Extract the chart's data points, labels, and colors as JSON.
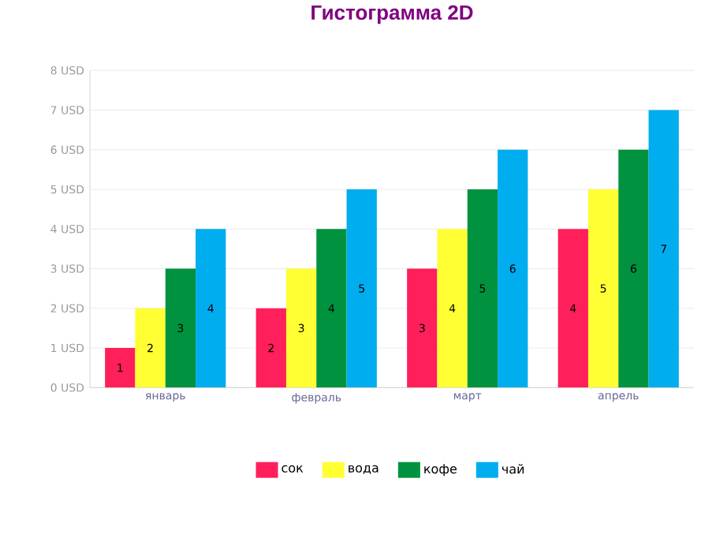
{
  "chart_data": {
    "type": "bar",
    "title": "Гистограмма 2D",
    "categories": [
      "январь",
      "февраль",
      "март",
      "апрель"
    ],
    "series": [
      {
        "name": "сок",
        "color": "#ff1f5a",
        "values": [
          1,
          2,
          3,
          4
        ]
      },
      {
        "name": "вода",
        "color": "#ffff33",
        "values": [
          2,
          3,
          4,
          5
        ]
      },
      {
        "name": "кофе",
        "color": "#00923f",
        "values": [
          3,
          4,
          5,
          6
        ]
      },
      {
        "name": "чай",
        "color": "#00adef",
        "values": [
          4,
          5,
          6,
          7
        ]
      }
    ],
    "ylim": [
      0,
      8
    ],
    "yticks": [
      {
        "value": 0,
        "label": "0 USD"
      },
      {
        "value": 1,
        "label": "1 USD"
      },
      {
        "value": 2,
        "label": "2 USD"
      },
      {
        "value": 3,
        "label": "3 USD"
      },
      {
        "value": 4,
        "label": "4 USD"
      },
      {
        "value": 5,
        "label": "5 USD"
      },
      {
        "value": 6,
        "label": "6 USD"
      },
      {
        "value": 7,
        "label": "7 USD"
      },
      {
        "value": 8,
        "label": "8 USD"
      }
    ],
    "grid": "y",
    "legend": "bottom",
    "data_labels": true
  }
}
